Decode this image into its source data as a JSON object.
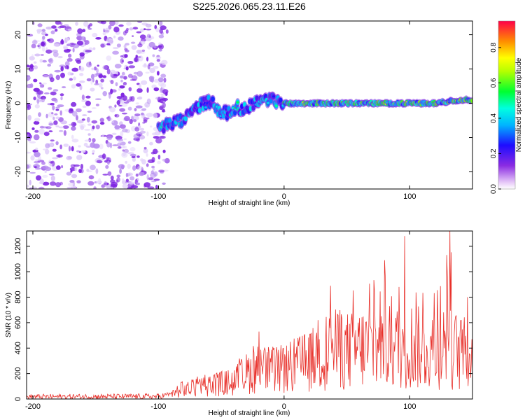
{
  "figure_title": "S225.2026.065.23.11.E26",
  "chart_data": [
    {
      "type": "heatmap",
      "title": "S225.2026.065.23.11.E26",
      "xlabel": "Height of straight line (km)",
      "ylabel": "Frequency (Hz)",
      "xlim": [
        -205,
        150
      ],
      "ylim": [
        -25,
        24
      ],
      "xticks": [
        -200,
        -100,
        0,
        100
      ],
      "yticks": [
        -20,
        -10,
        0,
        10,
        20
      ],
      "noise_region_x": [
        -205,
        -93
      ],
      "signal_track": {
        "x": [
          -100,
          -90,
          -80,
          -72,
          -65,
          -58,
          -52,
          -45,
          -38,
          -32,
          -25,
          -18,
          -10,
          0,
          10,
          20,
          40,
          60,
          80,
          100,
          120,
          140,
          150
        ],
        "freq_hz": [
          -7,
          -6,
          -5,
          -2,
          0,
          0.5,
          -2,
          -3,
          -1,
          -2,
          0,
          1,
          1,
          0,
          0,
          0,
          0,
          0,
          0,
          0,
          0,
          1,
          1
        ]
      },
      "colorbar": {
        "label": "Normalized spectral amplitude",
        "range": [
          0.0,
          0.95
        ],
        "ticks": [
          0.0,
          0.2,
          0.4,
          0.6,
          0.8
        ],
        "tick_labels": [
          "0.0",
          "0.2",
          "0.4",
          "0.6",
          "0.8"
        ]
      }
    },
    {
      "type": "line",
      "title": "",
      "xlabel": "Height of straight line (km)",
      "ylabel": "SNR (10 * v/v)",
      "xlim": [
        -205,
        150
      ],
      "ylim": [
        0,
        1320
      ],
      "xticks": [
        -200,
        -100,
        0,
        100
      ],
      "yticks": [
        0,
        200,
        400,
        600,
        800,
        1000,
        1200
      ],
      "series": [
        {
          "name": "SNR",
          "color": "#e8302a",
          "envelope_x": [
            -205,
            -100,
            -90,
            -80,
            -60,
            -40,
            -30,
            -20,
            -10,
            0,
            10,
            20,
            30,
            40,
            50,
            60,
            70,
            80,
            90,
            100,
            110,
            120,
            130,
            140,
            150
          ],
          "envelope_max": [
            40,
            45,
            60,
            150,
            230,
            280,
            400,
            530,
            360,
            430,
            520,
            600,
            890,
            790,
            850,
            870,
            1000,
            1090,
            1000,
            1280,
            870,
            890,
            1320,
            800,
            800
          ],
          "envelope_mean": [
            18,
            20,
            40,
            80,
            120,
            150,
            220,
            270,
            250,
            260,
            300,
            320,
            400,
            430,
            420,
            440,
            450,
            460,
            450,
            480,
            430,
            440,
            470,
            400,
            380
          ],
          "peaks": [
            {
              "x": -20,
              "y": 530
            },
            {
              "x": 37,
              "y": 890
            },
            {
              "x": 80,
              "y": 1090
            },
            {
              "x": 96,
              "y": 1280
            },
            {
              "x": 132,
              "y": 1320
            },
            {
              "x": 146,
              "y": 800
            }
          ]
        }
      ]
    }
  ]
}
